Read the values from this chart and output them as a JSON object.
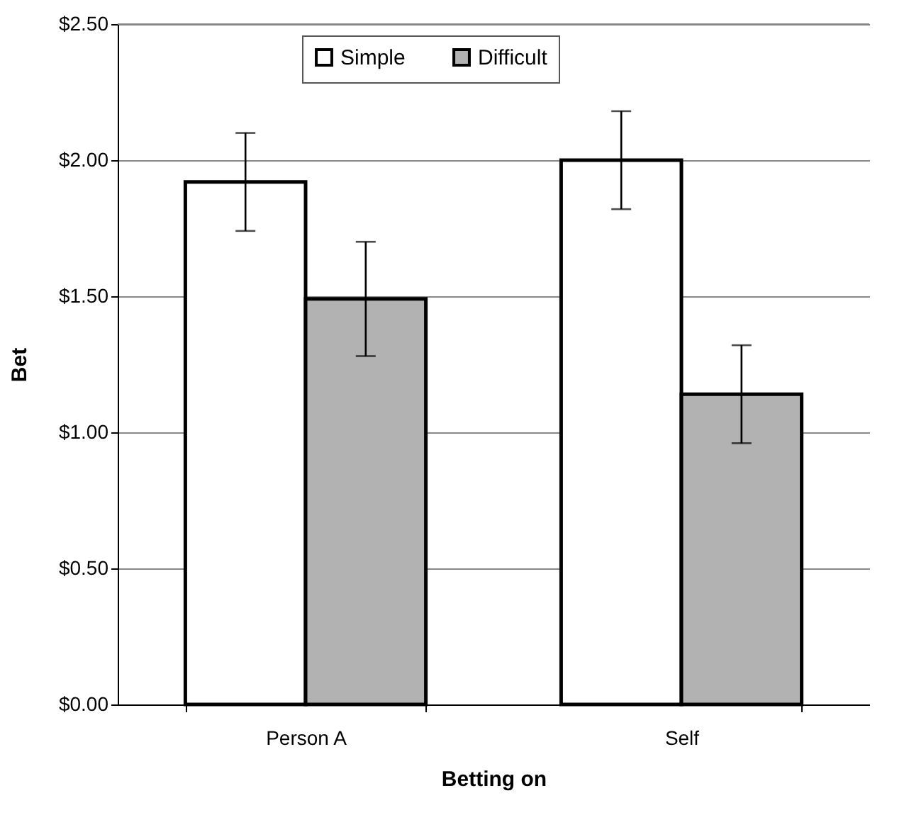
{
  "chart_data": {
    "type": "bar",
    "xlabel": "Betting on",
    "ylabel": "Bet",
    "categories": [
      "Person A",
      "Self"
    ],
    "series": [
      {
        "name": "Simple",
        "color": "#ffffff",
        "values": [
          1.92,
          2.0
        ],
        "errors": [
          [
            1.74,
            2.1
          ],
          [
            1.82,
            2.18
          ]
        ]
      },
      {
        "name": "Difficult",
        "color": "#b2b2b2",
        "values": [
          1.49,
          1.14
        ],
        "errors": [
          [
            1.28,
            1.7
          ],
          [
            0.96,
            1.32
          ]
        ]
      }
    ],
    "ylim": [
      0,
      2.5
    ],
    "yticks": [
      {
        "value": 0,
        "label": "$0.00"
      },
      {
        "value": 0.5,
        "label": "$0.50"
      },
      {
        "value": 1,
        "label": "$1.00"
      },
      {
        "value": 1.5,
        "label": "$1.50"
      },
      {
        "value": 2,
        "label": "$2.00"
      },
      {
        "value": 2.5,
        "label": "$2.50"
      }
    ],
    "grid": "y",
    "legend": "top"
  }
}
